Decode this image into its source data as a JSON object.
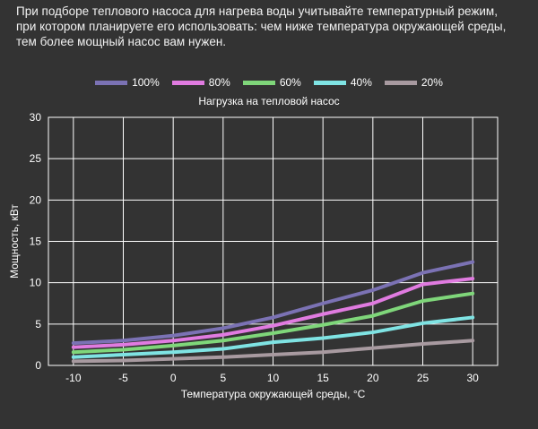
{
  "intro_text": "При подборе теплового насоса для нагрева воды учитывайте температурный режим, при котором планируете его использовать: чем ниже температура окружающей среды, тем более мощный насос вам нужен.",
  "chart_data": {
    "type": "line",
    "legend_title": "Нагрузка на тепловой насос",
    "xlabel": "Температура окружающей среды, °С",
    "ylabel": "Мощность, кВт",
    "x": [
      -10,
      -5,
      0,
      5,
      10,
      15,
      20,
      25,
      30
    ],
    "xlim": [
      -12.5,
      32.5
    ],
    "ylim": [
      0,
      30
    ],
    "xticks": [
      "-10",
      "-5",
      "0",
      "5",
      "10",
      "15",
      "20",
      "25",
      "30"
    ],
    "yticks": [
      "0",
      "5",
      "10",
      "15",
      "20",
      "25",
      "30"
    ],
    "grid": true,
    "legend_position": "top",
    "series": [
      {
        "name": "100%",
        "color": "#7b72b4",
        "values": [
          2.7,
          3.0,
          3.6,
          4.5,
          5.8,
          7.5,
          9.1,
          11.2,
          12.5
        ]
      },
      {
        "name": "80%",
        "color": "#e07be0",
        "values": [
          2.2,
          2.5,
          3.0,
          3.7,
          4.8,
          6.2,
          7.5,
          9.8,
          10.5
        ]
      },
      {
        "name": "60%",
        "color": "#7fd67a",
        "values": [
          1.6,
          1.9,
          2.4,
          3.0,
          3.9,
          4.9,
          6.0,
          7.8,
          8.7
        ]
      },
      {
        "name": "40%",
        "color": "#7fe3e3",
        "values": [
          1.0,
          1.3,
          1.6,
          2.0,
          2.8,
          3.3,
          4.0,
          5.1,
          5.8
        ]
      },
      {
        "name": "20%",
        "color": "#a89aa0",
        "values": [
          0.5,
          0.6,
          0.8,
          1.0,
          1.3,
          1.6,
          2.1,
          2.6,
          3.0
        ]
      }
    ]
  }
}
